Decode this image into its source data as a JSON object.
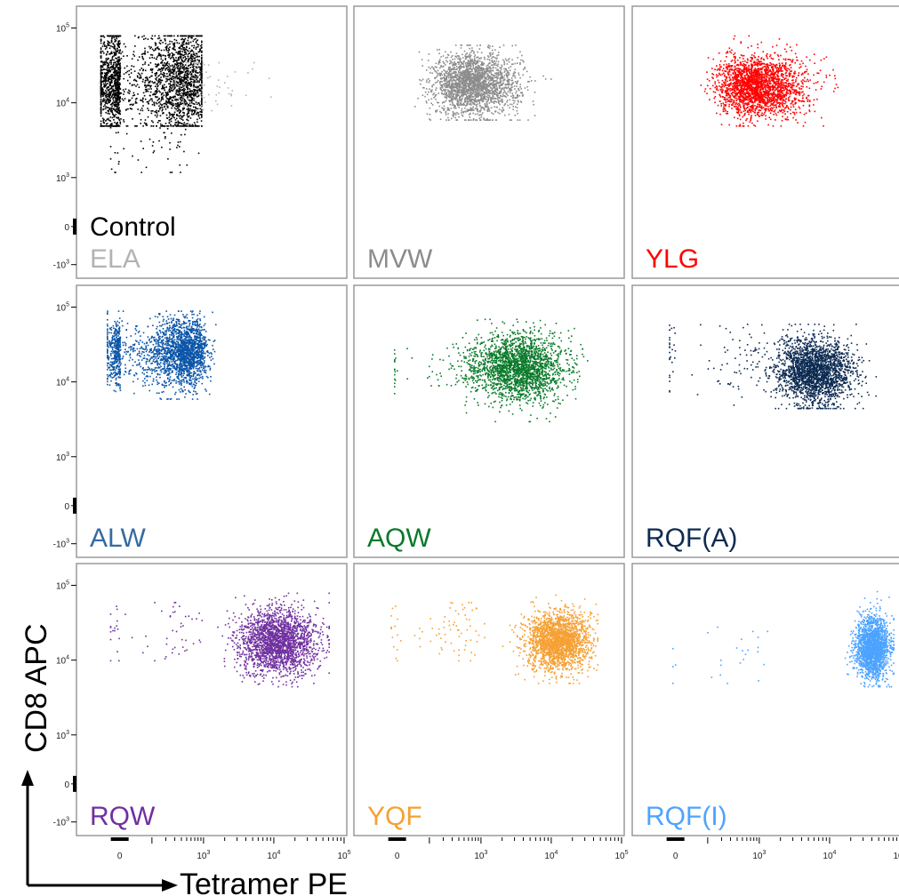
{
  "figure": {
    "x_axis_title": "Tetramer PE",
    "y_axis_title": "CD8 APC"
  },
  "chart_data": {
    "type": "scatter",
    "xlabel": "Tetramer PE",
    "ylabel": "CD8 APC",
    "x_scale": "biexponential",
    "y_scale": "biexponential",
    "x_ticks": [
      "0",
      "10^3",
      "10^4",
      "10^5"
    ],
    "y_ticks": [
      "10^5",
      "10^4",
      "10^3",
      "0",
      "-10^3"
    ],
    "xlim": [
      -1000,
      200000
    ],
    "ylim": [
      -1000,
      200000
    ],
    "panels": [
      {
        "row": 0,
        "col": 0,
        "labels": [
          {
            "text": "Control",
            "color": "#000000"
          },
          {
            "text": "ELA",
            "color": "#b3b3b3"
          }
        ],
        "series": [
          {
            "color": "#000000",
            "n": 2600,
            "cx": 150,
            "cy": 19000,
            "sx": 0.65,
            "sy": 0.35,
            "xmin": -600,
            "xmax": 900,
            "ymin": 5000,
            "ymax": 80000
          },
          {
            "color": "#000000",
            "n": 60,
            "cx": 150,
            "cy": 3000,
            "sx": 0.45,
            "sy": 0.25,
            "xmin": -300,
            "xmax": 800,
            "ymin": 1200,
            "ymax": 8000
          },
          {
            "color": "#b3b3b3",
            "n": 110,
            "cx": 700,
            "cy": 17000,
            "sx": 0.45,
            "sy": 0.2,
            "xmin": 300,
            "xmax": 30000,
            "ymin": 8000,
            "ymax": 35000
          }
        ]
      },
      {
        "row": 0,
        "col": 1,
        "labels": [
          {
            "text": "MVW",
            "color": "#8c8c8c"
          }
        ],
        "series": [
          {
            "color": "#8c8c8c",
            "n": 2300,
            "cx": 700,
            "cy": 18000,
            "sx": 0.35,
            "sy": 0.2,
            "xmin": 20,
            "xmax": 20000,
            "ymin": 6000,
            "ymax": 60000
          }
        ]
      },
      {
        "row": 0,
        "col": 2,
        "labels": [
          {
            "text": "YLG",
            "color": "#ff0000"
          }
        ],
        "series": [
          {
            "color": "#ff0000",
            "n": 2300,
            "cx": 900,
            "cy": 17000,
            "sx": 0.35,
            "sy": 0.2,
            "xmin": 50,
            "xmax": 120000,
            "ymin": 5000,
            "ymax": 80000
          }
        ]
      },
      {
        "row": 1,
        "col": 0,
        "labels": [
          {
            "text": "ALW",
            "color": "#356ba3"
          }
        ],
        "series": [
          {
            "color": "#0b55a8",
            "n": 2300,
            "cx": 350,
            "cy": 25000,
            "sx": 0.45,
            "sy": 0.22,
            "xmin": -400,
            "xmax": 6000,
            "ymin": 6000,
            "ymax": 90000
          }
        ]
      },
      {
        "row": 1,
        "col": 1,
        "labels": [
          {
            "text": "AQW",
            "color": "#0a7a2a"
          }
        ],
        "series": [
          {
            "color": "#0a7a2a",
            "n": 2200,
            "cx": 3500,
            "cy": 16000,
            "sx": 0.32,
            "sy": 0.22,
            "xmin": 300,
            "xmax": 40000,
            "ymin": 3000,
            "ymax": 70000
          },
          {
            "color": "#0a7a2a",
            "n": 120,
            "cx": 500,
            "cy": 15000,
            "sx": 0.4,
            "sy": 0.2,
            "xmin": -100,
            "xmax": 3000,
            "ymin": 5000,
            "ymax": 40000
          }
        ]
      },
      {
        "row": 1,
        "col": 2,
        "labels": [
          {
            "text": "RQF(A)",
            "color": "#0d2b52"
          }
        ],
        "series": [
          {
            "color": "#0d2b52",
            "n": 2300,
            "cx": 6000,
            "cy": 14000,
            "sx": 0.28,
            "sy": 0.22,
            "xmin": 700,
            "xmax": 45000,
            "ymin": 4500,
            "ymax": 60000
          },
          {
            "color": "#0d2b52",
            "n": 90,
            "cx": 250,
            "cy": 20000,
            "sx": 0.55,
            "sy": 0.25,
            "xmin": -200,
            "xmax": 2000,
            "ymin": 5000,
            "ymax": 60000
          }
        ]
      },
      {
        "row": 2,
        "col": 0,
        "labels": [
          {
            "text": "RQW",
            "color": "#7030a0"
          }
        ],
        "series": [
          {
            "color": "#7030a0",
            "n": 2200,
            "cx": 11000,
            "cy": 18000,
            "sx": 0.28,
            "sy": 0.22,
            "xmin": 900,
            "xmax": 60000,
            "ymin": 4500,
            "ymax": 80000
          },
          {
            "color": "#7030a0",
            "n": 60,
            "cx": 200,
            "cy": 25000,
            "sx": 0.5,
            "sy": 0.22,
            "xmin": -300,
            "xmax": 1500,
            "ymin": 10000,
            "ymax": 60000
          }
        ]
      },
      {
        "row": 2,
        "col": 1,
        "labels": [
          {
            "text": "YQF",
            "color": "#f5a033"
          }
        ],
        "series": [
          {
            "color": "#f5a033",
            "n": 2200,
            "cx": 12000,
            "cy": 18000,
            "sx": 0.22,
            "sy": 0.2,
            "xmin": 2000,
            "xmax": 45000,
            "ymin": 5000,
            "ymax": 80000
          },
          {
            "color": "#f5a033",
            "n": 80,
            "cx": 250,
            "cy": 25000,
            "sx": 0.5,
            "sy": 0.22,
            "xmin": -200,
            "xmax": 3000,
            "ymin": 10000,
            "ymax": 60000
          }
        ]
      },
      {
        "row": 2,
        "col": 2,
        "labels": [
          {
            "text": "RQF(I)",
            "color": "#4da3ff"
          }
        ],
        "series": [
          {
            "color": "#4da3ff",
            "n": 2000,
            "cx": 40000,
            "cy": 15000,
            "sx": 0.12,
            "sy": 0.2,
            "xmin": 12000,
            "xmax": 80000,
            "ymin": 4500,
            "ymax": 90000
          },
          {
            "color": "#4da3ff",
            "n": 25,
            "cx": 400,
            "cy": 12000,
            "sx": 0.5,
            "sy": 0.2,
            "xmin": -100,
            "xmax": 3000,
            "ymin": 5000,
            "ymax": 35000
          }
        ]
      }
    ]
  }
}
